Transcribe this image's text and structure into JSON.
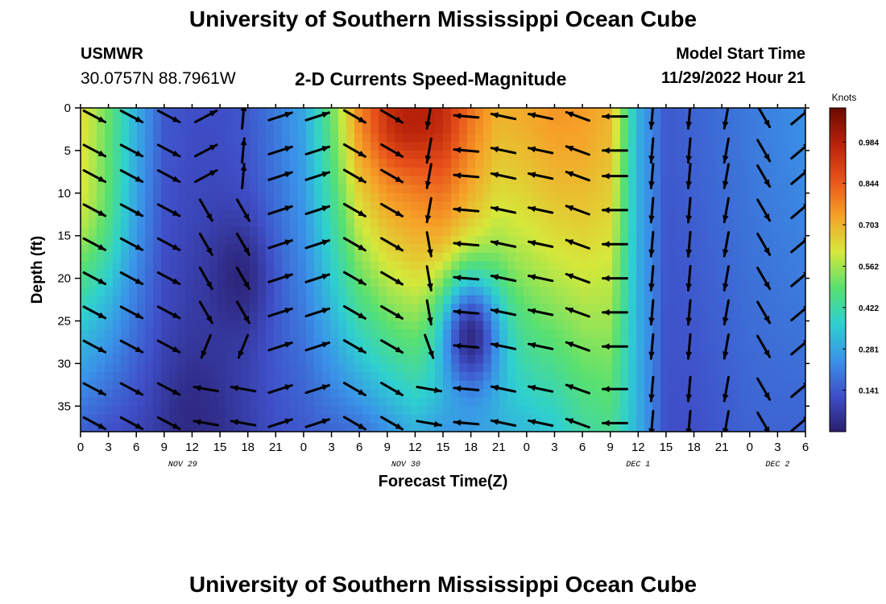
{
  "header": {
    "title": "University of Southern Mississippi Ocean Cube",
    "station": "USMWR",
    "coords": "30.0757N  88.7961W",
    "product": "2-D Currents Speed-Magnitude",
    "model_start_label": "Model Start Time",
    "model_start_value": "11/29/2022 Hour 21"
  },
  "footer": {
    "title": "University of Southern Mississippi Ocean Cube"
  },
  "chart_data": {
    "type": "heatmap",
    "title": "2-D Currents Speed-Magnitude",
    "xlabel": "Forecast Time(Z)",
    "ylabel": "Depth (ft)",
    "x_range_hours": [
      0,
      78
    ],
    "ylim": [
      0,
      38
    ],
    "y_inverted": true,
    "x_tick_labels": [
      "0",
      "3",
      "6",
      "9",
      "12",
      "15",
      "18",
      "21",
      "0",
      "3",
      "6",
      "9",
      "12",
      "15",
      "18",
      "21",
      "0",
      "3",
      "6",
      "9",
      "12",
      "15",
      "18",
      "21",
      "0",
      "3",
      "6"
    ],
    "y_ticks": [
      0,
      5,
      10,
      15,
      20,
      25,
      30,
      35
    ],
    "date_labels": [
      {
        "label": "NOV 29",
        "hour": 11
      },
      {
        "label": "NOV 30",
        "hour": 35
      },
      {
        "label": "DEC 1",
        "hour": 60
      },
      {
        "label": "DEC 2",
        "hour": 75
      }
    ],
    "colorbar": {
      "unit": "Knots",
      "range": [
        0,
        1.1
      ],
      "ticks": [
        0.141,
        0.281,
        0.422,
        0.562,
        0.703,
        0.844,
        0.984
      ],
      "colors": [
        "#2a1e6e",
        "#3f4fc8",
        "#3a93e8",
        "#2ed0d0",
        "#58e070",
        "#d6e83a",
        "#f6a028",
        "#e8521a",
        "#b8220a",
        "#6a0a00"
      ]
    },
    "speed_profile": {
      "hours": [
        0,
        3,
        6,
        9,
        12,
        15,
        18,
        21,
        24,
        27,
        30,
        33,
        36,
        39,
        42,
        45,
        48,
        51,
        54,
        57,
        60,
        63,
        66,
        69,
        72,
        75,
        78
      ],
      "surface_knots": [
        0.64,
        0.5,
        0.3,
        0.14,
        0.12,
        0.12,
        0.14,
        0.2,
        0.28,
        0.5,
        0.75,
        0.85,
        0.88,
        0.92,
        0.8,
        0.7,
        0.72,
        0.75,
        0.74,
        0.7,
        0.3,
        0.14,
        0.16,
        0.18,
        0.2,
        0.22,
        0.24
      ],
      "bottom_knots": [
        0.15,
        0.12,
        0.1,
        0.08,
        0.04,
        0.05,
        0.08,
        0.12,
        0.14,
        0.16,
        0.18,
        0.24,
        0.3,
        0.26,
        0.28,
        0.3,
        0.32,
        0.35,
        0.42,
        0.45,
        0.3,
        0.12,
        0.12,
        0.14,
        0.16,
        0.16,
        0.16
      ]
    },
    "vector_rows_depth_ft": [
      1,
      5,
      8,
      12,
      16,
      20,
      24,
      28,
      33,
      37
    ],
    "vector_columns_hour": [
      1.5,
      5.5,
      9.5,
      13.5,
      17.5,
      21.5,
      25.5,
      29.5,
      33.5,
      37.5,
      41.5,
      45.5,
      49.5,
      53.5,
      57.5,
      61.5,
      65.5,
      69.5,
      73.5,
      77.5
    ],
    "vector_field_note": "arrows rendered from directional zones",
    "low_speed_cores": [
      {
        "hour": 17,
        "depth_ft": 20,
        "knots": 0.02
      },
      {
        "hour": 42,
        "depth_ft": 27,
        "knots": 0.03
      },
      {
        "hour": 12,
        "depth_ft": 37,
        "knots": 0.03
      }
    ],
    "high_speed_core": {
      "hour": 35,
      "depth_ft": 2,
      "knots": 1.0
    }
  }
}
